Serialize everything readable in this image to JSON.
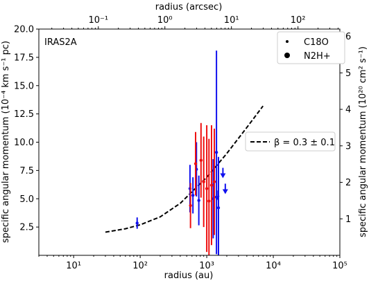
{
  "chart_data": {
    "type": "scatter",
    "panel_label": "IRAS2A",
    "xlabel": "radius (au)",
    "ylabel_left": "specific angular momentum (10⁻⁴ km s⁻¹ pc)",
    "ylabel_right": "specific angular momentum (10²⁰ cm² s⁻¹)",
    "xlabel_top": "radius (arcsec)",
    "xscale": "log",
    "xlim": [
      3,
      100000
    ],
    "ylim": [
      0,
      20
    ],
    "x_ticks": [
      {
        "value": 10,
        "label": "10¹"
      },
      {
        "value": 100,
        "label": "10²"
      },
      {
        "value": 1000,
        "label": "10³"
      },
      {
        "value": 10000,
        "label": "10⁴"
      },
      {
        "value": 100000,
        "label": "10⁵"
      }
    ],
    "y_ticks": [
      {
        "value": 2.5,
        "label": "2.5"
      },
      {
        "value": 5.0,
        "label": "5.0"
      },
      {
        "value": 7.5,
        "label": "7.5"
      },
      {
        "value": 10.0,
        "label": "10.0"
      },
      {
        "value": 12.5,
        "label": "12.5"
      },
      {
        "value": 15.0,
        "label": "15.0"
      },
      {
        "value": 17.5,
        "label": "17.5"
      },
      {
        "value": 20.0,
        "label": "20.0"
      }
    ],
    "top_ticks": [
      {
        "value": 0.1,
        "label": "10⁻¹"
      },
      {
        "value": 1,
        "label": "10⁰"
      },
      {
        "value": 10,
        "label": "10¹"
      },
      {
        "value": 100,
        "label": "10²"
      }
    ],
    "right_ticks": [
      {
        "value": 1,
        "label": "1"
      },
      {
        "value": 2,
        "label": "2"
      },
      {
        "value": 3,
        "label": "3"
      },
      {
        "value": 4,
        "label": "4"
      },
      {
        "value": 5,
        "label": "5"
      },
      {
        "value": 6,
        "label": "6"
      }
    ],
    "legend": [
      {
        "label": "C18O",
        "marker_size": 2
      },
      {
        "label": "N2H+",
        "marker_size": 4
      }
    ],
    "fit": {
      "label": "β = 0.3 ± 0.1",
      "x": [
        30,
        60,
        100,
        200,
        400,
        700,
        1000,
        2000,
        4000,
        7000
      ],
      "y": [
        2.05,
        2.35,
        2.7,
        3.4,
        4.6,
        6.0,
        6.9,
        9.0,
        11.3,
        13.2
      ]
    },
    "series": [
      {
        "color": "#1010ee",
        "points": [
          {
            "x": 90,
            "y": 2.85,
            "err": 0.5
          },
          {
            "x": 560,
            "y": 5.9,
            "err": 2.1
          },
          {
            "x": 620,
            "y": 5.3,
            "err": 1.6
          },
          {
            "x": 700,
            "y": 7.6,
            "err": 2.4
          },
          {
            "x": 760,
            "y": 4.85,
            "err": 2.2
          },
          {
            "x": 1250,
            "y": 5.0,
            "err": 3.5
          },
          {
            "x": 1400,
            "y": 9.1,
            "err": 9.0
          },
          {
            "x": 1500,
            "y": 4.2,
            "err": 4.5
          }
        ],
        "upper_limits": [
          {
            "x": 1420,
            "y": 5.0
          },
          {
            "x": 1750,
            "y": 7.0
          },
          {
            "x": 1900,
            "y": 5.6
          }
        ]
      },
      {
        "color": "#ee1010",
        "points": [
          {
            "x": 570,
            "y": 4.4,
            "err": 2.0
          },
          {
            "x": 680,
            "y": 8.1,
            "err": 2.8
          },
          {
            "x": 820,
            "y": 8.4,
            "err": 3.3
          },
          {
            "x": 900,
            "y": 6.5,
            "err": 4.0
          },
          {
            "x": 1000,
            "y": 5.9,
            "err": 5.6
          },
          {
            "x": 1080,
            "y": 4.8,
            "err": 5.5
          },
          {
            "x": 1180,
            "y": 6.2,
            "err": 5.3
          },
          {
            "x": 1300,
            "y": 6.5,
            "err": 4.7
          }
        ]
      }
    ]
  }
}
